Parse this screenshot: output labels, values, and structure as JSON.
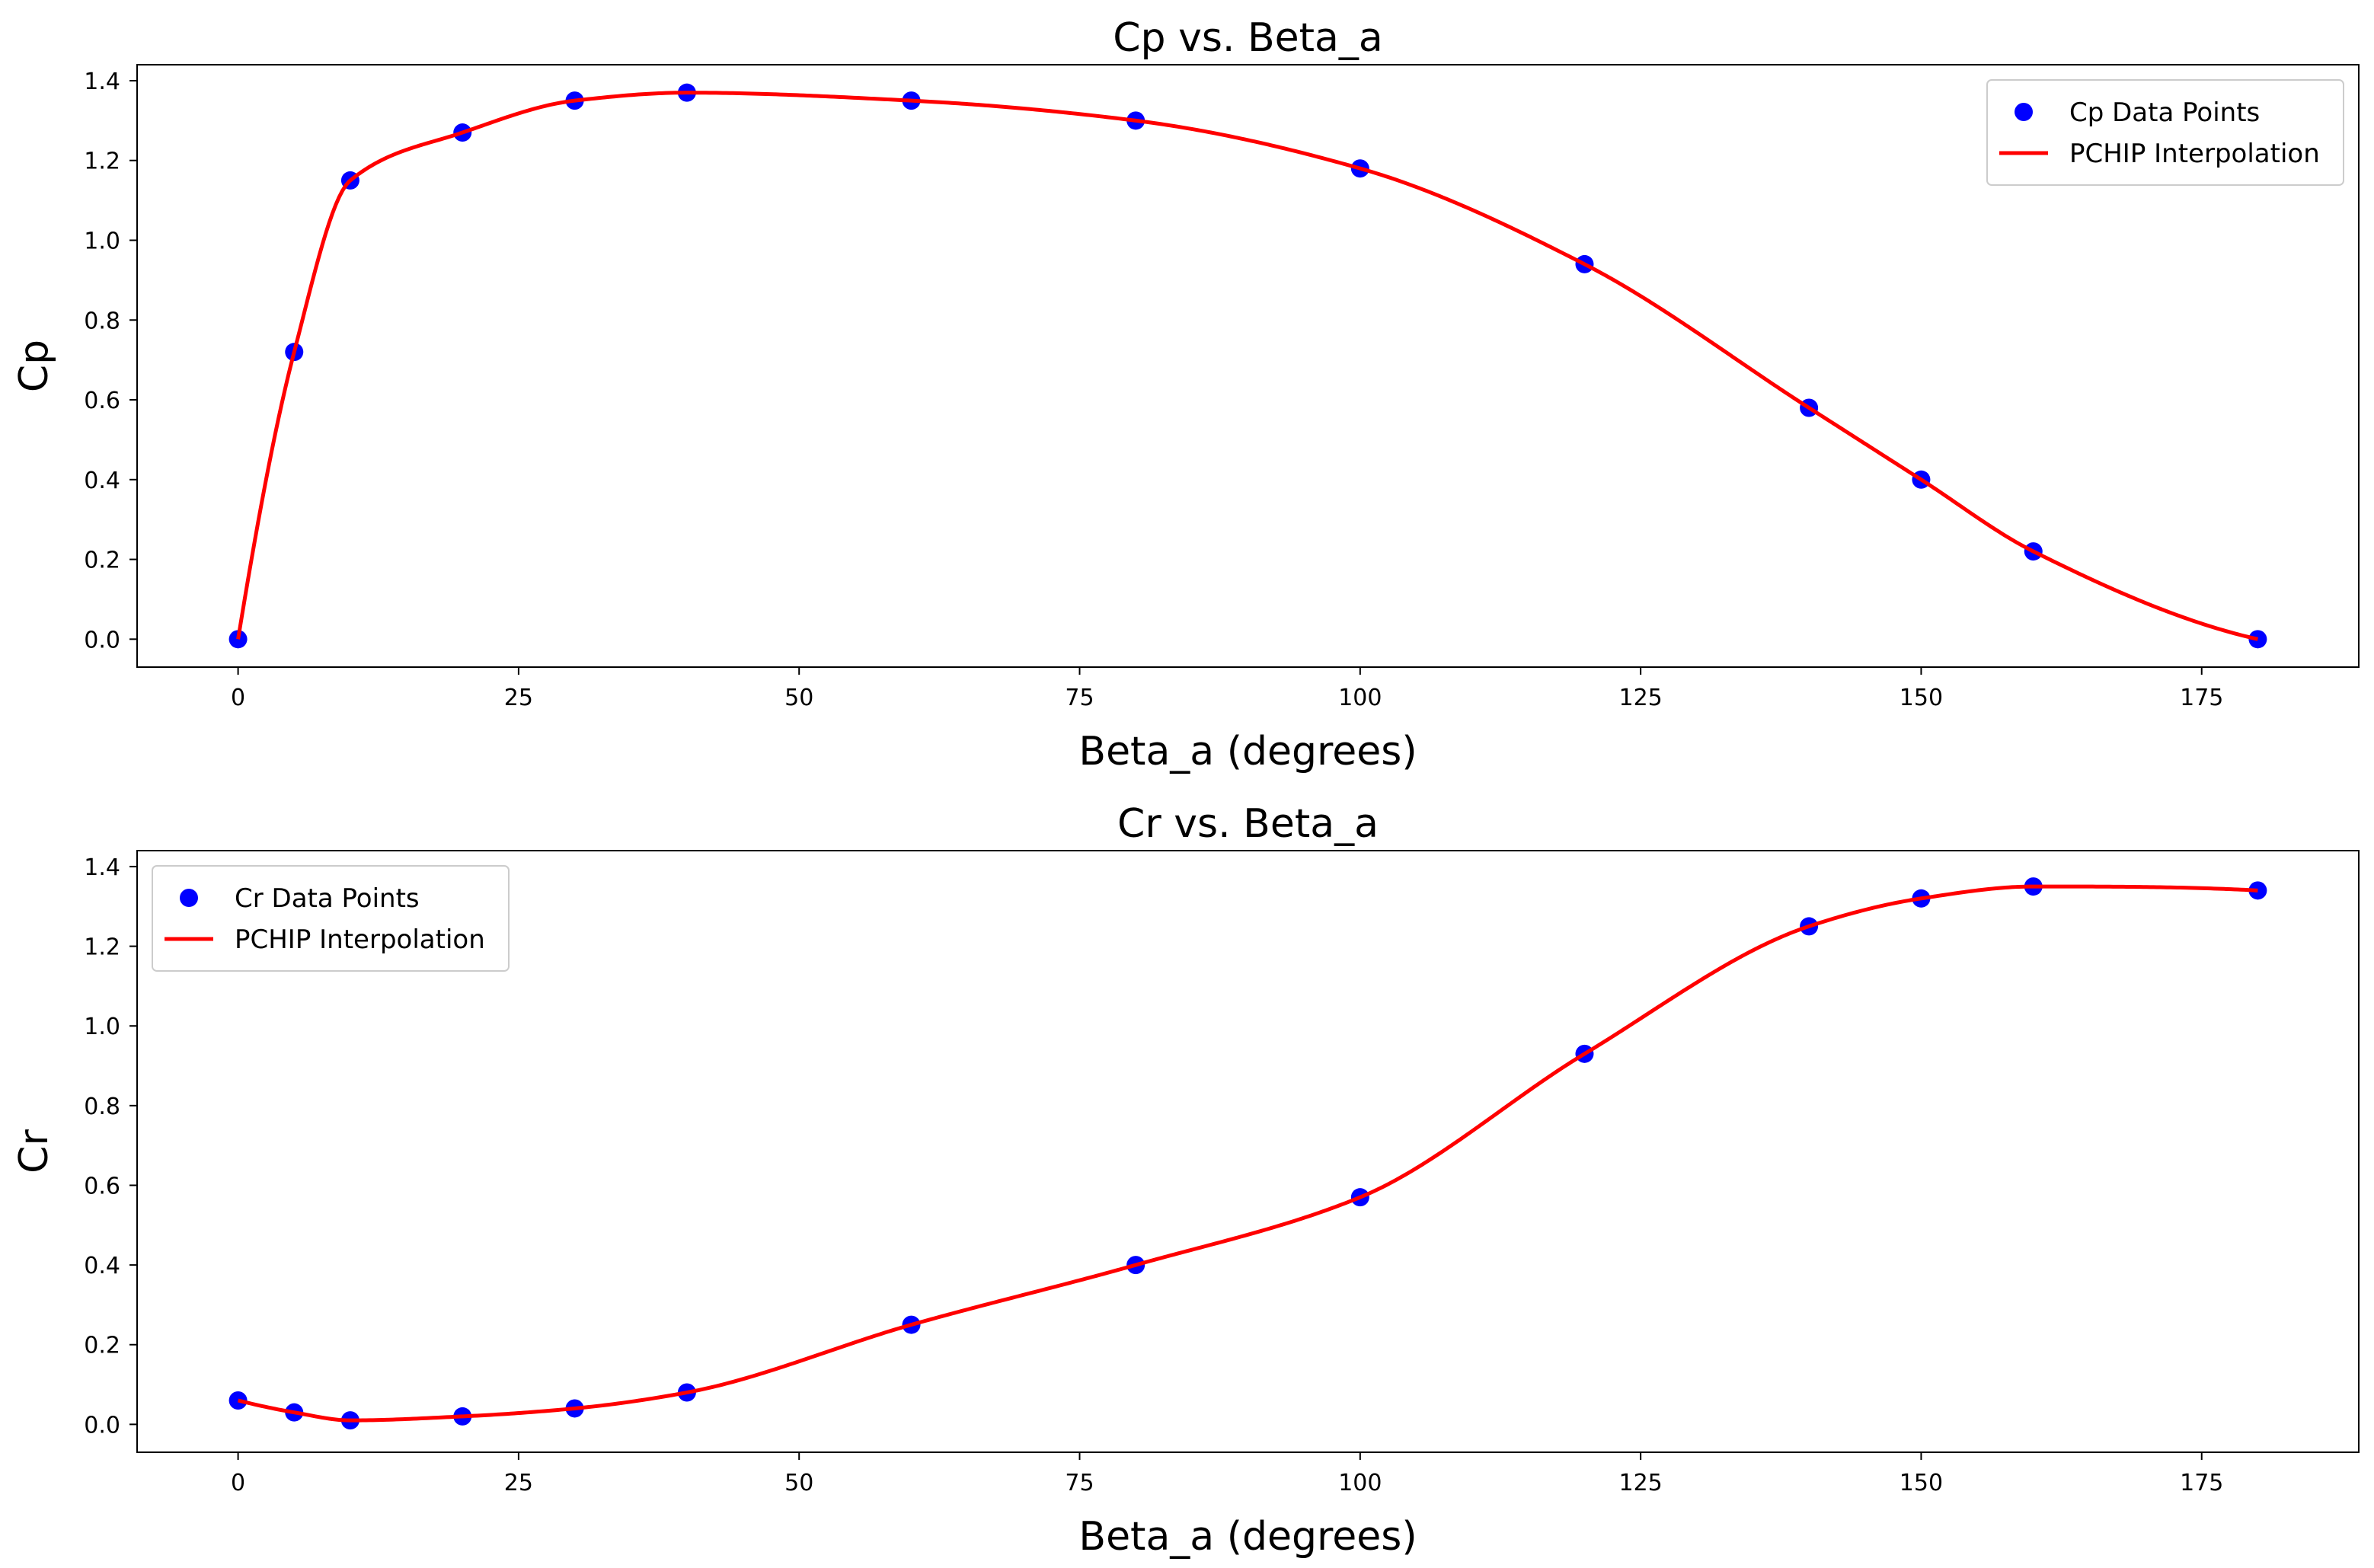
{
  "chart_data": [
    {
      "type": "line",
      "title": "Cp vs. Beta_a",
      "xlabel": "Beta_a (degrees)",
      "ylabel": "Cp",
      "xlim": [
        -9,
        189
      ],
      "ylim": [
        -0.07,
        1.44
      ],
      "xticks": [
        0,
        25,
        50,
        75,
        100,
        125,
        150,
        175
      ],
      "yticks": [
        "0.0",
        "0.2",
        "0.4",
        "0.6",
        "0.8",
        "1.0",
        "1.2",
        "1.4"
      ],
      "legend_position": "top-right",
      "grid": false,
      "colors": {
        "points": "#0000ff",
        "line": "#ff0000"
      },
      "series": [
        {
          "name": "Cp Data Points",
          "kind": "scatter",
          "x": [
            0,
            5,
            10,
            20,
            30,
            40,
            60,
            80,
            100,
            120,
            140,
            150,
            160,
            180
          ],
          "y": [
            0.0,
            0.72,
            1.15,
            1.27,
            1.35,
            1.37,
            1.35,
            1.3,
            1.18,
            0.94,
            0.58,
            0.4,
            0.22,
            0.0
          ]
        },
        {
          "name": "PCHIP Interpolation",
          "kind": "line",
          "interpolation": "pchip",
          "x": [
            0,
            5,
            10,
            20,
            30,
            40,
            60,
            80,
            100,
            120,
            140,
            150,
            160,
            180
          ],
          "y": [
            0.0,
            0.72,
            1.15,
            1.27,
            1.35,
            1.37,
            1.35,
            1.3,
            1.18,
            0.94,
            0.58,
            0.4,
            0.22,
            0.0
          ]
        }
      ]
    },
    {
      "type": "line",
      "title": "Cr vs. Beta_a",
      "xlabel": "Beta_a (degrees)",
      "ylabel": "Cr",
      "xlim": [
        -9,
        189
      ],
      "ylim": [
        -0.07,
        1.44
      ],
      "xticks": [
        0,
        25,
        50,
        75,
        100,
        125,
        150,
        175
      ],
      "yticks": [
        "0.0",
        "0.2",
        "0.4",
        "0.6",
        "0.8",
        "1.0",
        "1.2",
        "1.4"
      ],
      "legend_position": "top-left",
      "grid": false,
      "colors": {
        "points": "#0000ff",
        "line": "#ff0000"
      },
      "series": [
        {
          "name": "Cr Data Points",
          "kind": "scatter",
          "x": [
            0,
            5,
            10,
            20,
            30,
            40,
            60,
            80,
            100,
            120,
            140,
            150,
            160,
            180
          ],
          "y": [
            0.06,
            0.03,
            0.01,
            0.02,
            0.04,
            0.08,
            0.25,
            0.4,
            0.57,
            0.93,
            1.25,
            1.32,
            1.35,
            1.34
          ]
        },
        {
          "name": "PCHIP Interpolation",
          "kind": "line",
          "interpolation": "pchip",
          "x": [
            0,
            5,
            10,
            20,
            30,
            40,
            60,
            80,
            100,
            120,
            140,
            150,
            160,
            180
          ],
          "y": [
            0.06,
            0.03,
            0.01,
            0.02,
            0.04,
            0.08,
            0.25,
            0.4,
            0.57,
            0.93,
            1.25,
            1.32,
            1.35,
            1.34
          ]
        }
      ]
    }
  ]
}
